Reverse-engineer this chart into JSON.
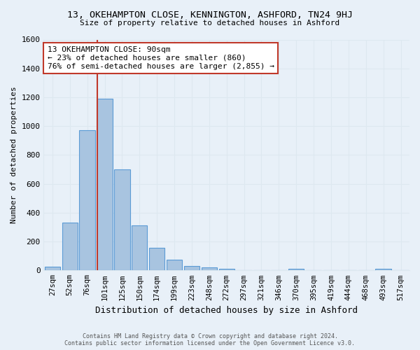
{
  "title": "13, OKEHAMPTON CLOSE, KENNINGTON, ASHFORD, TN24 9HJ",
  "subtitle": "Size of property relative to detached houses in Ashford",
  "xlabel": "Distribution of detached houses by size in Ashford",
  "ylabel": "Number of detached properties",
  "bar_labels": [
    "27sqm",
    "52sqm",
    "76sqm",
    "101sqm",
    "125sqm",
    "150sqm",
    "174sqm",
    "199sqm",
    "223sqm",
    "248sqm",
    "272sqm",
    "297sqm",
    "321sqm",
    "346sqm",
    "370sqm",
    "395sqm",
    "419sqm",
    "444sqm",
    "468sqm",
    "493sqm",
    "517sqm"
  ],
  "bar_values": [
    25,
    330,
    970,
    1190,
    700,
    310,
    155,
    75,
    30,
    20,
    12,
    0,
    0,
    0,
    12,
    0,
    0,
    0,
    0,
    12,
    0
  ],
  "bar_color": "#a8c4e0",
  "bar_edge_color": "#5b9bd5",
  "grid_color": "#dde8f0",
  "vline_color": "#c0392b",
  "annotation_text": "13 OKEHAMPTON CLOSE: 90sqm\n← 23% of detached houses are smaller (860)\n76% of semi-detached houses are larger (2,855) →",
  "annotation_box_color": "#ffffff",
  "annotation_box_edge": "#c0392b",
  "ylim": [
    0,
    1600
  ],
  "yticks": [
    0,
    200,
    400,
    600,
    800,
    1000,
    1200,
    1400,
    1600
  ],
  "footer_line1": "Contains HM Land Registry data © Crown copyright and database right 2024.",
  "footer_line2": "Contains public sector information licensed under the Open Government Licence v3.0.",
  "bg_color": "#e8f0f8",
  "plot_bg_color": "#e8f0f8"
}
